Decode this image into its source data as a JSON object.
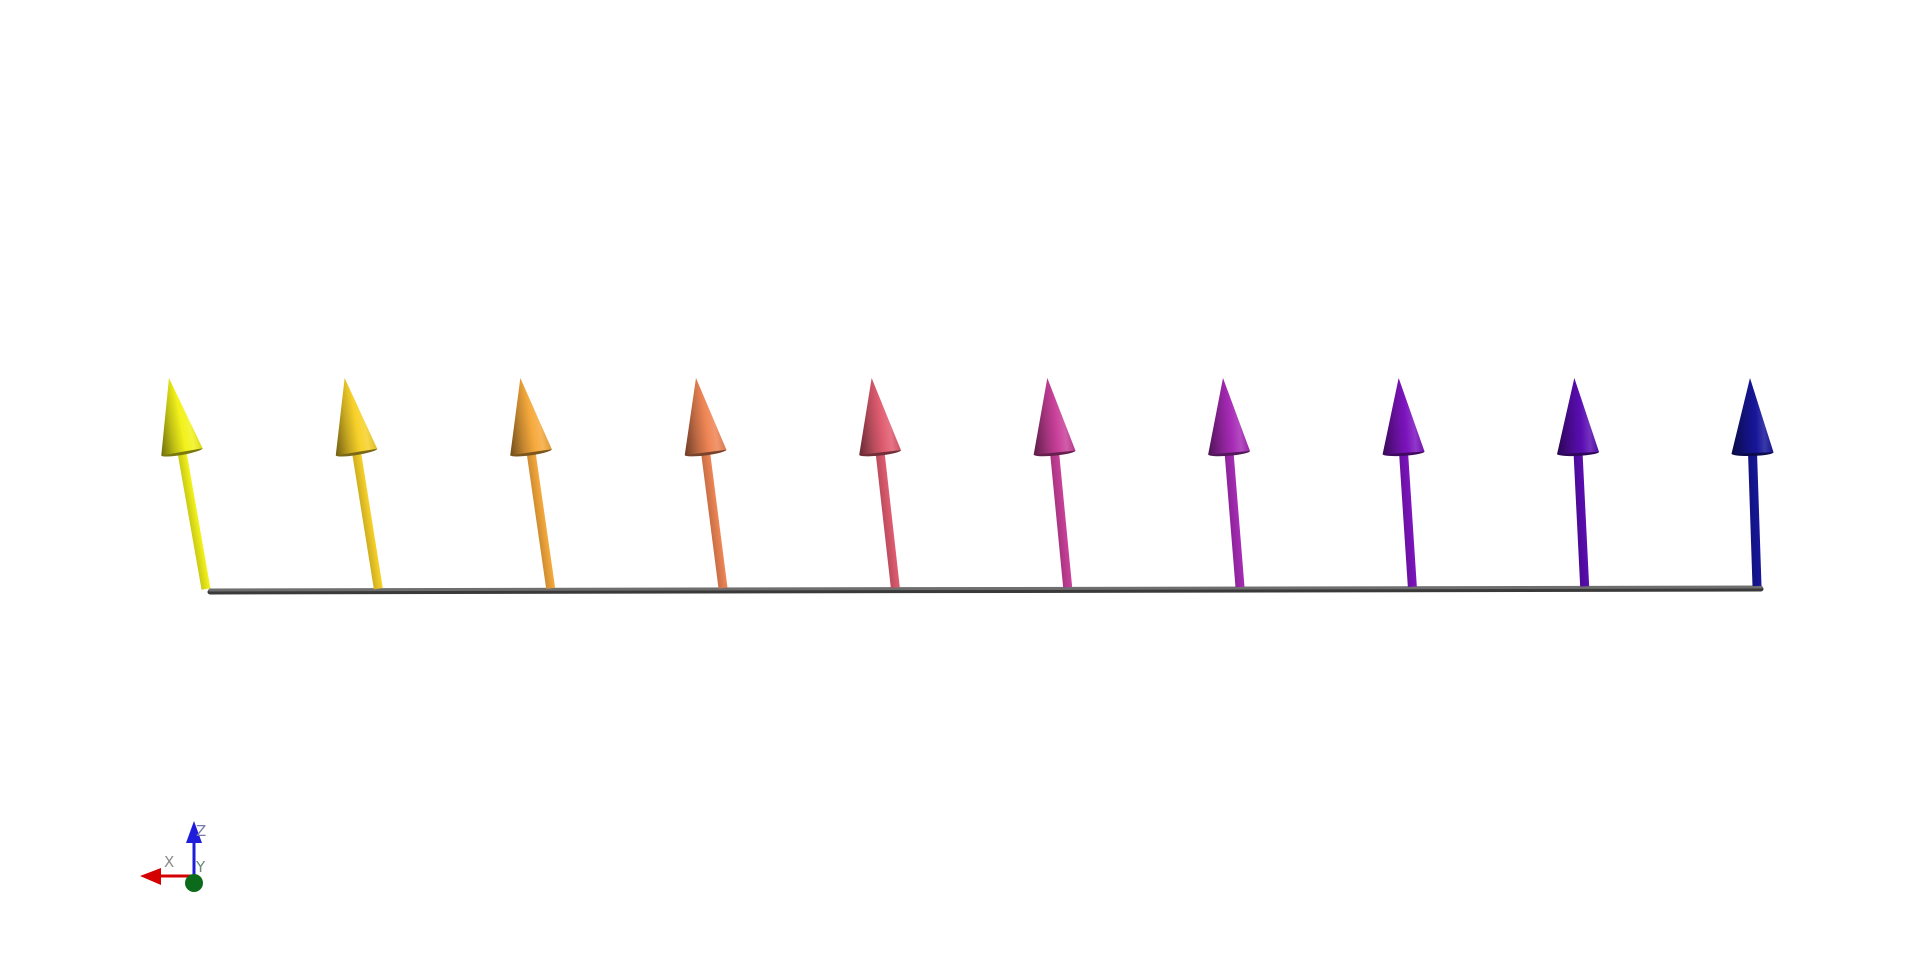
{
  "scene": {
    "background": "#ffffff",
    "baseline_color": "#6e6e6e",
    "arrows": [
      {
        "color": "#f2f21b"
      },
      {
        "color": "#f7d129"
      },
      {
        "color": "#f6a93c"
      },
      {
        "color": "#ef8555"
      },
      {
        "color": "#e05c70"
      },
      {
        "color": "#c9409a"
      },
      {
        "color": "#a72bb6"
      },
      {
        "color": "#7d14bf"
      },
      {
        "color": "#5a0db2"
      },
      {
        "color": "#17169a"
      }
    ]
  },
  "orientation_axes": {
    "x": {
      "label": "X",
      "color": "#d40000",
      "icon": "arrow-left-icon"
    },
    "y": {
      "label": "Y",
      "color": "#0b6b1a",
      "icon": "dot-icon"
    },
    "z": {
      "label": "Z",
      "color": "#1d1ddb",
      "icon": "arrow-up-icon"
    }
  }
}
